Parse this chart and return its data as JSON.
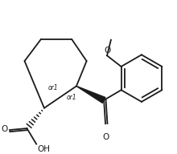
{
  "bg_color": "#ffffff",
  "line_color": "#1a1a1a",
  "line_width": 1.3,
  "figsize": [
    2.2,
    1.92
  ],
  "dpi": 100,
  "xlim": [
    0,
    220
  ],
  "ylim": [
    0,
    192
  ]
}
